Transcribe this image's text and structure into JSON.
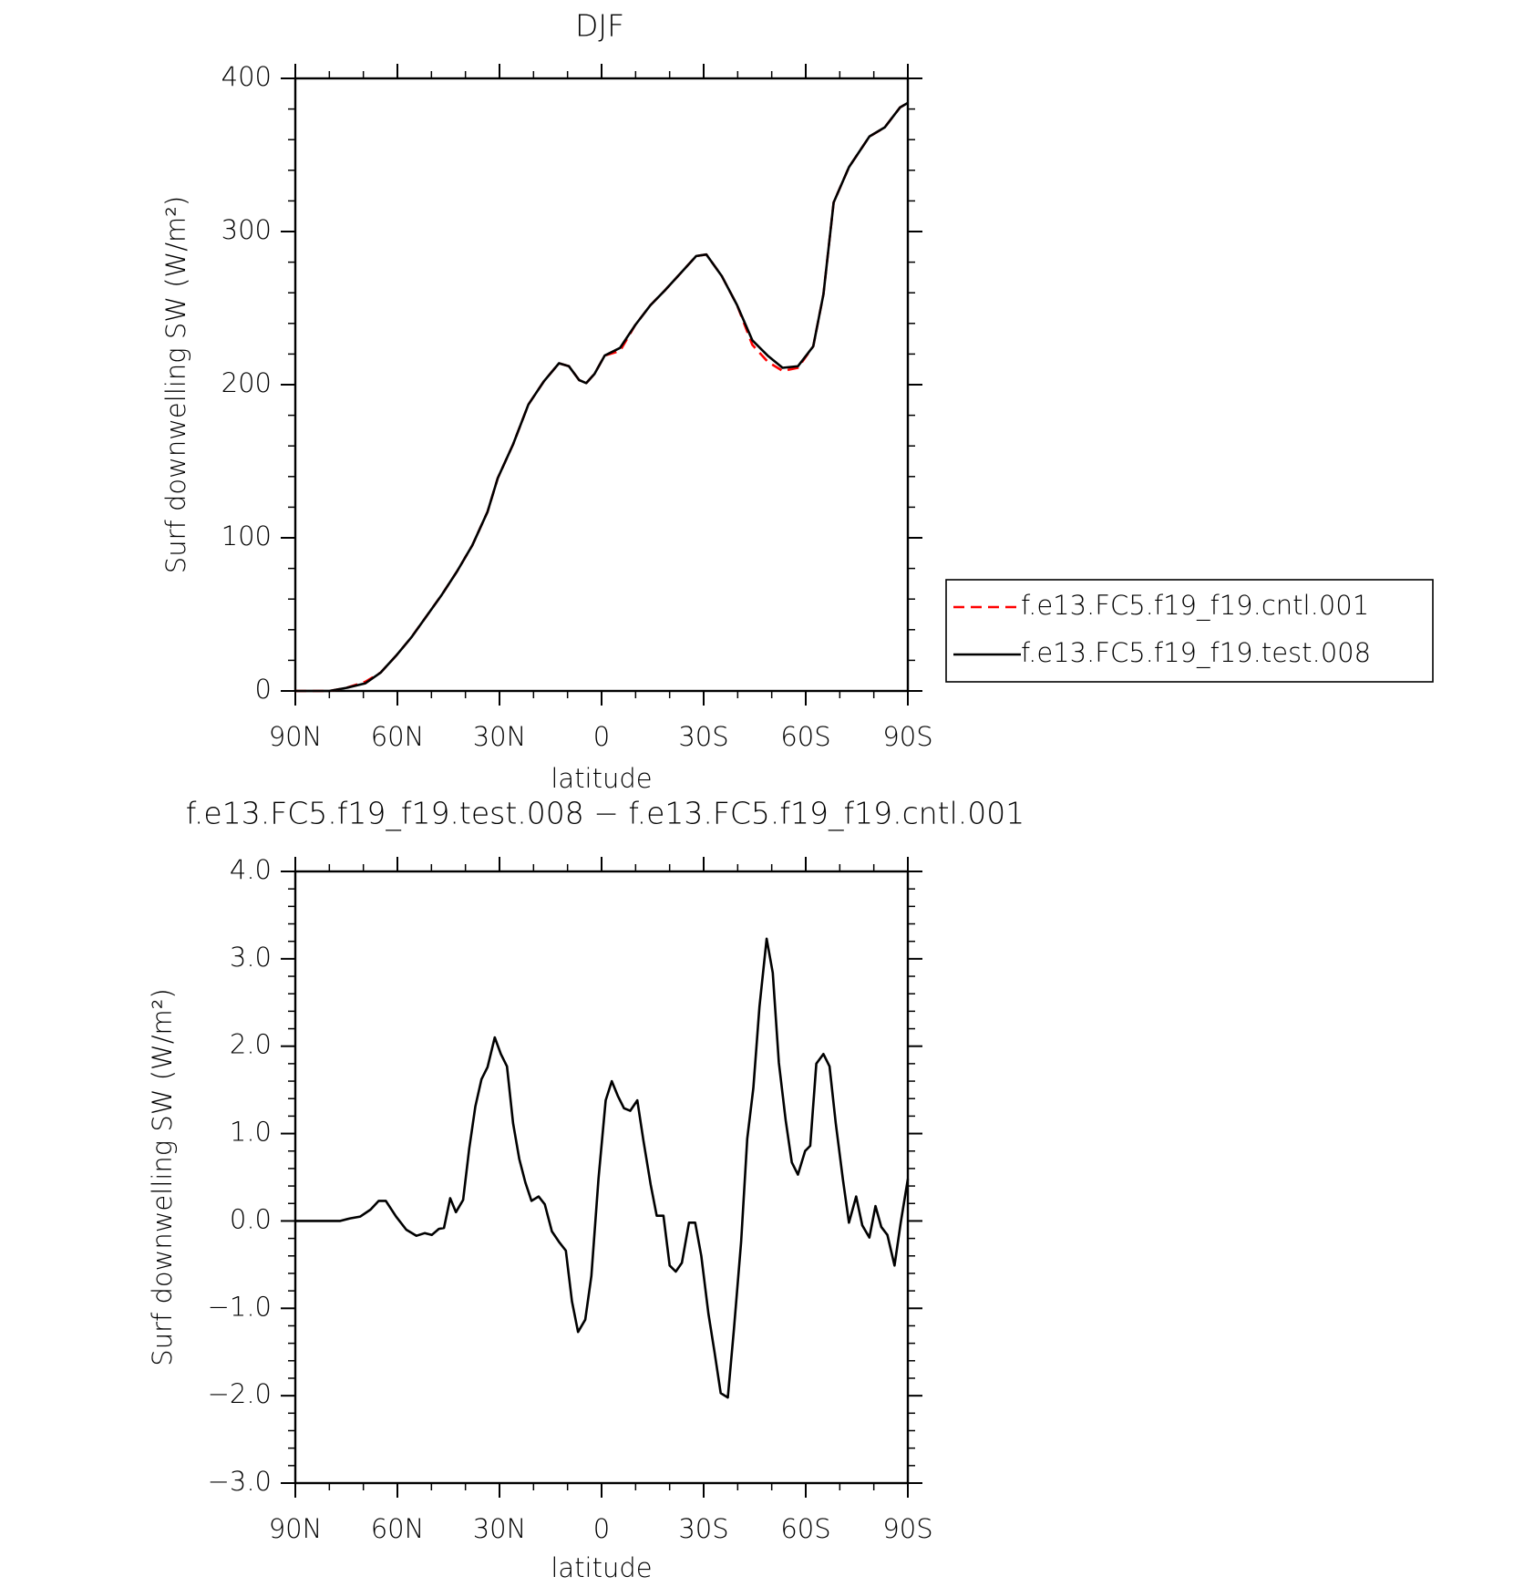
{
  "chart_data": [
    {
      "type": "line",
      "title": "DJF",
      "x_label": "latitude",
      "y_label": "Surf downwelling SW (W/m²)",
      "xlim": [
        90,
        -90
      ],
      "ylim": [
        0,
        400
      ],
      "xticks": [
        {
          "value": 90,
          "label": "90N"
        },
        {
          "value": 60,
          "label": "60N"
        },
        {
          "value": 30,
          "label": "30N"
        },
        0,
        {
          "value": -30,
          "label": "30S"
        },
        {
          "value": -60,
          "label": "60S"
        },
        {
          "value": -90,
          "label": "90S"
        }
      ],
      "yticks": [
        0,
        100,
        200,
        300,
        400
      ],
      "legend": "outside-right",
      "x": [
        90,
        80,
        75,
        69.4,
        64.9,
        60.4,
        55.9,
        51.4,
        46.9,
        42.5,
        38,
        33.5,
        30.5,
        26,
        21.5,
        17,
        12.5,
        9.6,
        6.6,
        4.5,
        2.1,
        -0.9,
        -5.4,
        -9.9,
        -14.4,
        -18.8,
        -23.3,
        -27.8,
        -30.8,
        -35.3,
        -39.8,
        -44.3,
        -48.8,
        -53.2,
        -57.7,
        -62.2,
        -65.2,
        -68.2,
        -72.7,
        -78.7,
        -83.2,
        -87.7,
        -90
      ],
      "series": [
        {
          "name": "f.e13.FC5.f19_f19.cntl.001",
          "color": "#ff0000",
          "dash": true,
          "values": [
            0,
            0,
            2,
            6,
            12,
            23,
            35,
            49,
            63,
            78,
            95,
            117,
            139,
            161,
            187,
            202,
            214,
            212,
            203,
            201,
            207,
            219,
            222,
            239,
            252,
            262,
            273,
            284,
            285,
            271,
            252,
            226,
            215,
            209,
            211,
            225,
            259,
            319,
            342,
            362,
            368,
            381,
            384
          ]
        },
        {
          "name": "f.e13.FC5.f19_f19.test.008",
          "color": "#000000",
          "dash": false,
          "values": [
            0,
            0,
            2,
            5,
            12,
            23,
            35,
            49,
            63,
            78,
            95,
            117,
            139,
            161,
            187,
            202,
            214,
            212,
            203,
            201,
            207,
            219,
            224,
            239,
            252,
            262,
            273,
            284,
            285,
            271,
            252,
            229,
            219,
            211,
            212,
            225,
            259,
            319,
            342,
            362,
            368,
            381,
            384
          ]
        }
      ]
    },
    {
      "type": "line",
      "title": "f.e13.FC5.f19_f19.test.008 − f.e13.FC5.f19_f19.cntl.001",
      "x_label": "latitude",
      "y_label": "Surf downwelling SW (W/m²)",
      "xlim": [
        90,
        -90
      ],
      "ylim": [
        -3,
        4
      ],
      "xticks": [
        {
          "value": 90,
          "label": "90N"
        },
        {
          "value": 60,
          "label": "60N"
        },
        {
          "value": 30,
          "label": "30N"
        },
        0,
        {
          "value": -30,
          "label": "30S"
        },
        {
          "value": -60,
          "label": "60S"
        },
        {
          "value": -90,
          "label": "90S"
        }
      ],
      "yticks": [
        {
          "value": -3,
          "label": "−3.0"
        },
        {
          "value": -2,
          "label": "−2.0"
        },
        {
          "value": -1,
          "label": "−1.0"
        },
        {
          "value": 0,
          "label": "0.0"
        },
        {
          "value": 1,
          "label": "1.0"
        },
        {
          "value": 2,
          "label": "2.0"
        },
        {
          "value": 3,
          "label": "3.0"
        },
        {
          "value": 4,
          "label": "4.0"
        }
      ],
      "legend": false,
      "x": [
        90,
        76.8,
        73.9,
        70.9,
        67.9,
        65.5,
        63.4,
        60.4,
        57.4,
        54.4,
        52,
        49.9,
        47.8,
        46.3,
        44.5,
        42.8,
        40.7,
        38.9,
        37.1,
        35.3,
        33.5,
        31.4,
        29.6,
        27.8,
        26,
        24.2,
        22.4,
        20.6,
        18.5,
        16.7,
        14.6,
        12.5,
        10.5,
        8.7,
        6.9,
        4.8,
        3,
        0.9,
        -1.2,
        -3,
        -4.8,
        -6.6,
        -8.4,
        -10.5,
        -12.3,
        -14.4,
        -16.2,
        -18.2,
        -20,
        -21.8,
        -23.6,
        -25.7,
        -27.5,
        -29.3,
        -31.4,
        -33.2,
        -35,
        -37.1,
        -38.9,
        -41,
        -42.8,
        -44.6,
        -46.4,
        -48.5,
        -50.3,
        -52.1,
        -54.1,
        -55.9,
        -57.7,
        -59.8,
        -61.3,
        -63.1,
        -65.2,
        -67,
        -68.8,
        -70.9,
        -72.7,
        -74.8,
        -76.6,
        -78.7,
        -80.5,
        -82.2,
        -84,
        -86.1,
        -87.9,
        -90
      ],
      "series": [
        {
          "color": "#000000",
          "dash": false,
          "values": [
            0,
            0,
            0.03,
            0.05,
            0.13,
            0.23,
            0.23,
            0.05,
            -0.1,
            -0.17,
            -0.14,
            -0.16,
            -0.09,
            -0.08,
            0.26,
            0.1,
            0.24,
            0.83,
            1.31,
            1.62,
            1.76,
            2.1,
            1.91,
            1.77,
            1.12,
            0.71,
            0.44,
            0.23,
            0.28,
            0.19,
            -0.12,
            -0.24,
            -0.34,
            -0.92,
            -1.27,
            -1.13,
            -0.63,
            0.48,
            1.38,
            1.6,
            1.43,
            1.29,
            1.26,
            1.38,
            0.92,
            0.42,
            0.06,
            0.06,
            -0.51,
            -0.58,
            -0.48,
            -0.02,
            -0.02,
            -0.4,
            -1.06,
            -1.5,
            -1.97,
            -2.02,
            -1.24,
            -0.24,
            0.94,
            1.52,
            2.45,
            3.23,
            2.84,
            1.81,
            1.15,
            0.67,
            0.53,
            0.8,
            0.86,
            1.8,
            1.91,
            1.77,
            1.12,
            0.48,
            -0.02,
            0.28,
            -0.05,
            -0.19,
            0.17,
            -0.07,
            -0.16,
            -0.51,
            -0.02,
            0.48
          ]
        }
      ]
    }
  ]
}
